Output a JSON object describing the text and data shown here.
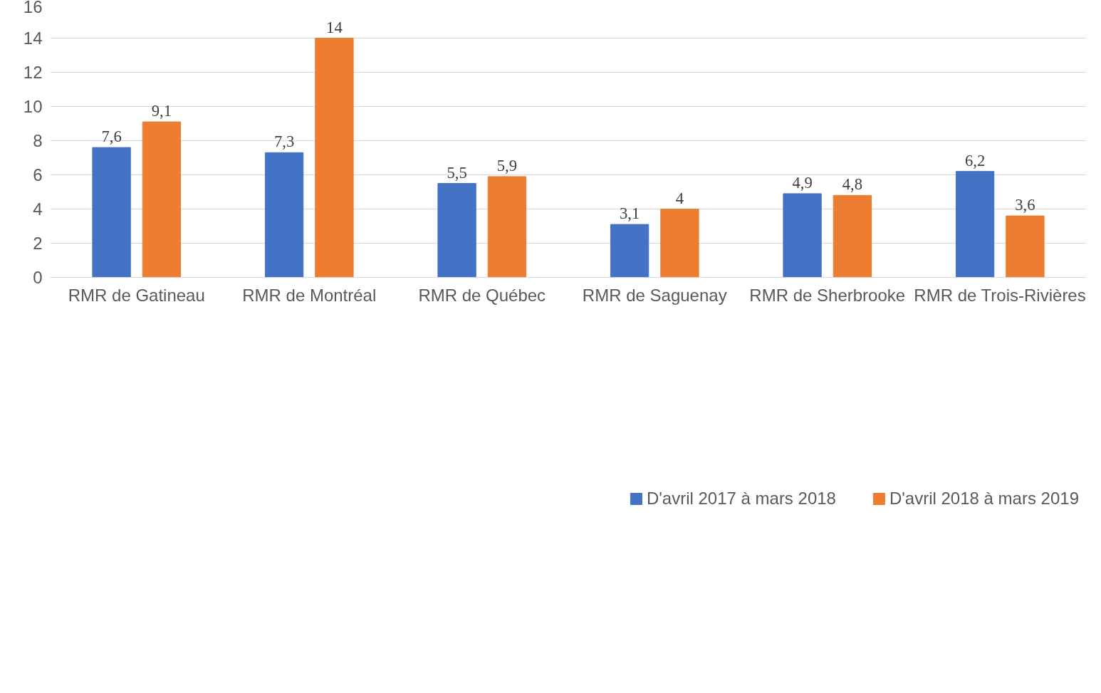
{
  "chart_data": {
    "type": "bar",
    "categories": [
      "RMR de Gatineau",
      "RMR de Montréal",
      "RMR de Québec",
      "RMR de Saguenay",
      "RMR de Sherbrooke",
      "RMR de Trois-Rivières"
    ],
    "series": [
      {
        "name": "D'avril 2017 à mars 2018",
        "color": "#4472c4",
        "values": [
          7.6,
          7.3,
          5.5,
          3.1,
          4.9,
          6.2
        ],
        "value_labels": [
          "7,6",
          "7,3",
          "5,5",
          "3,1",
          "4,9",
          "6,2"
        ]
      },
      {
        "name": "D'avril 2018 à mars 2019",
        "color": "#ed7d31",
        "values": [
          9.1,
          14,
          5.9,
          4,
          4.8,
          3.6
        ],
        "value_labels": [
          "9,1",
          "14",
          "5,9",
          "4",
          "4,8",
          "3,6"
        ]
      }
    ],
    "ylim": [
      0,
      16
    ],
    "yticks": [
      0,
      2,
      4,
      6,
      8,
      10,
      12,
      14,
      16
    ],
    "grid": "y",
    "legend": "bottom"
  }
}
